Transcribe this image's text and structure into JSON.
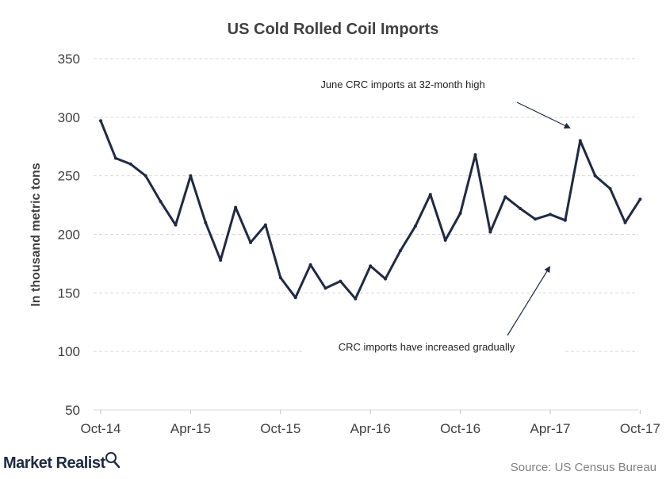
{
  "chart_data": {
    "type": "line",
    "title": "US Cold Rolled Coil Imports",
    "ylabel": "In thousand metric tons",
    "xlabel": "",
    "ylim": [
      50,
      350
    ],
    "y_ticks": [
      50,
      100,
      150,
      200,
      250,
      300,
      350
    ],
    "x_tick_labels": [
      "Oct-14",
      "Apr-15",
      "Oct-15",
      "Apr-16",
      "Oct-16",
      "Apr-17",
      "Oct-17"
    ],
    "grid": "horizontal dashed",
    "line_color": "#1f2a44",
    "x": [
      "Oct-14",
      "Nov-14",
      "Dec-14",
      "Jan-15",
      "Feb-15",
      "Mar-15",
      "Apr-15",
      "May-15",
      "Jun-15",
      "Jul-15",
      "Aug-15",
      "Sep-15",
      "Oct-15",
      "Nov-15",
      "Dec-15",
      "Jan-16",
      "Feb-16",
      "Mar-16",
      "Apr-16",
      "May-16",
      "Jun-16",
      "Jul-16",
      "Aug-16",
      "Sep-16",
      "Oct-16",
      "Nov-16",
      "Dec-16",
      "Jan-17",
      "Feb-17",
      "Mar-17",
      "Apr-17",
      "May-17",
      "Jun-17",
      "Jul-17",
      "Aug-17",
      "Sep-17",
      "Oct-17"
    ],
    "series": [
      {
        "values": [
          297,
          265,
          260,
          250,
          228,
          208,
          250,
          210,
          178,
          223,
          193,
          208,
          163,
          146,
          174,
          154,
          160,
          145,
          173,
          162,
          186,
          207,
          234,
          195,
          218,
          268,
          202,
          232,
          222,
          213,
          217,
          212,
          280,
          250,
          239,
          210,
          230
        ]
      }
    ],
    "annotations": [
      {
        "text": "June CRC imports at 32-month high",
        "points_to": "Jun-17"
      },
      {
        "text": "CRC imports have increased gradually"
      }
    ]
  },
  "branding": {
    "logo_text": "Market Realist",
    "source": "Source: US Census Bureau"
  }
}
